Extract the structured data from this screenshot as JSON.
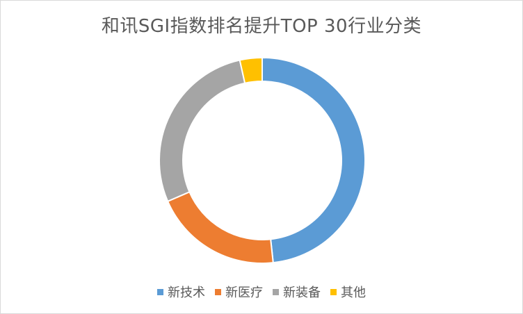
{
  "chart_data": {
    "type": "pie",
    "variant": "donut",
    "title": "和讯SGI指数排名提升TOP 30行业分类",
    "categories": [
      "新技术",
      "新医疗",
      "新装备",
      "其他"
    ],
    "values": [
      48.3,
      20.2,
      28.0,
      3.5
    ],
    "colors": [
      "#5b9bd5",
      "#ed7d31",
      "#a5a5a5",
      "#ffc000"
    ],
    "legend_position": "bottom"
  }
}
